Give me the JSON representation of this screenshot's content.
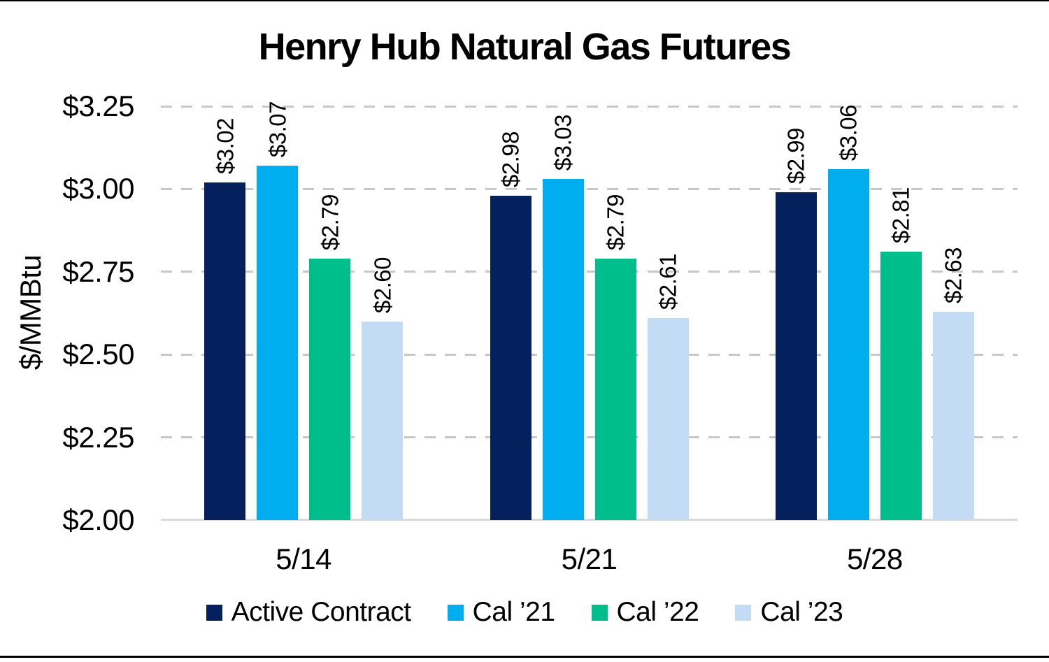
{
  "chart_data": {
    "type": "bar",
    "title": "Henry Hub Natural Gas Futures",
    "ylabel": "$/MMBtu",
    "xlabel": "",
    "categories": [
      "5/14",
      "5/21",
      "5/28"
    ],
    "series": [
      {
        "name": "Active Contract",
        "color": "#04215E",
        "values": [
          3.02,
          2.98,
          2.99
        ],
        "value_labels": [
          "$3.02",
          "$2.98",
          "$2.99"
        ]
      },
      {
        "name": "Cal ’21",
        "color": "#00AEF0",
        "values": [
          3.07,
          3.03,
          3.06
        ],
        "value_labels": [
          "$3.07",
          "$3.03",
          "$3.06"
        ]
      },
      {
        "name": "Cal ’22",
        "color": "#00BE8C",
        "values": [
          2.79,
          2.79,
          2.81
        ],
        "value_labels": [
          "$2.79",
          "$2.79",
          "$2.81"
        ]
      },
      {
        "name": "Cal ’23",
        "color": "#C3DBF5",
        "values": [
          2.6,
          2.61,
          2.63
        ],
        "value_labels": [
          "$2.60",
          "$2.61",
          "$2.63"
        ]
      }
    ],
    "y_axis": {
      "min": 2.0,
      "max": 3.25,
      "step": 0.25,
      "tick_labels": [
        "$3.25",
        "$3.00",
        "$2.75",
        "$2.50",
        "$2.25",
        "$2.00"
      ]
    },
    "grid": "horizontal-dashed",
    "legend_position": "bottom"
  },
  "colors": {
    "background": "#FFFFFF",
    "text": "#000000",
    "gridline": "#C8C8C8",
    "axis_baseline": "#D9D9D9",
    "divider_rule": "#000000"
  }
}
